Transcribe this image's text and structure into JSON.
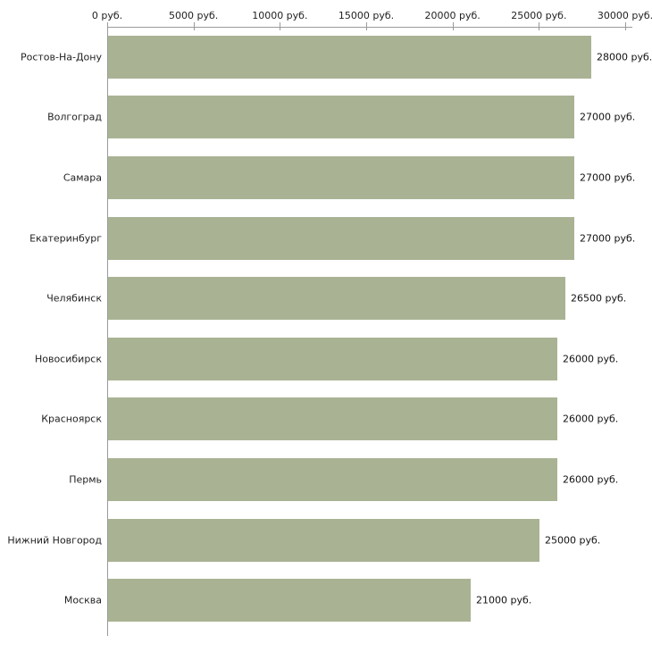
{
  "chart_data": {
    "type": "bar",
    "orientation": "horizontal",
    "title": "",
    "xlabel": "",
    "ylabel": "",
    "grid": false,
    "axis_position": "top",
    "xlim": [
      0,
      30000
    ],
    "x_ticks": [
      0,
      5000,
      10000,
      15000,
      20000,
      25000,
      30000
    ],
    "x_tick_labels": [
      "0 руб.",
      "5000 руб.",
      "10000 руб.",
      "15000 руб.",
      "20000 руб.",
      "25000 руб.",
      "30000 руб."
    ],
    "categories": [
      "Ростов-На-Дону",
      "Волгоград",
      "Самара",
      "Екатеринбург",
      "Челябинск",
      "Новосибирск",
      "Красноярск",
      "Пермь",
      "Нижний Новгород",
      "Москва"
    ],
    "values": [
      28000,
      27000,
      27000,
      27000,
      26500,
      26000,
      26000,
      26000,
      25000,
      21000
    ],
    "value_labels": [
      "28000 руб.",
      "27000 руб.",
      "27000 руб.",
      "27000 руб.",
      "26500 руб.",
      "26000 руб.",
      "26000 руб.",
      "26000 руб.",
      "25000 руб.",
      "21000 руб."
    ],
    "bar_color": "#a9b394",
    "axis_color": "#9a9a9a",
    "text_color": "#222222",
    "background_color": "#ffffff"
  }
}
